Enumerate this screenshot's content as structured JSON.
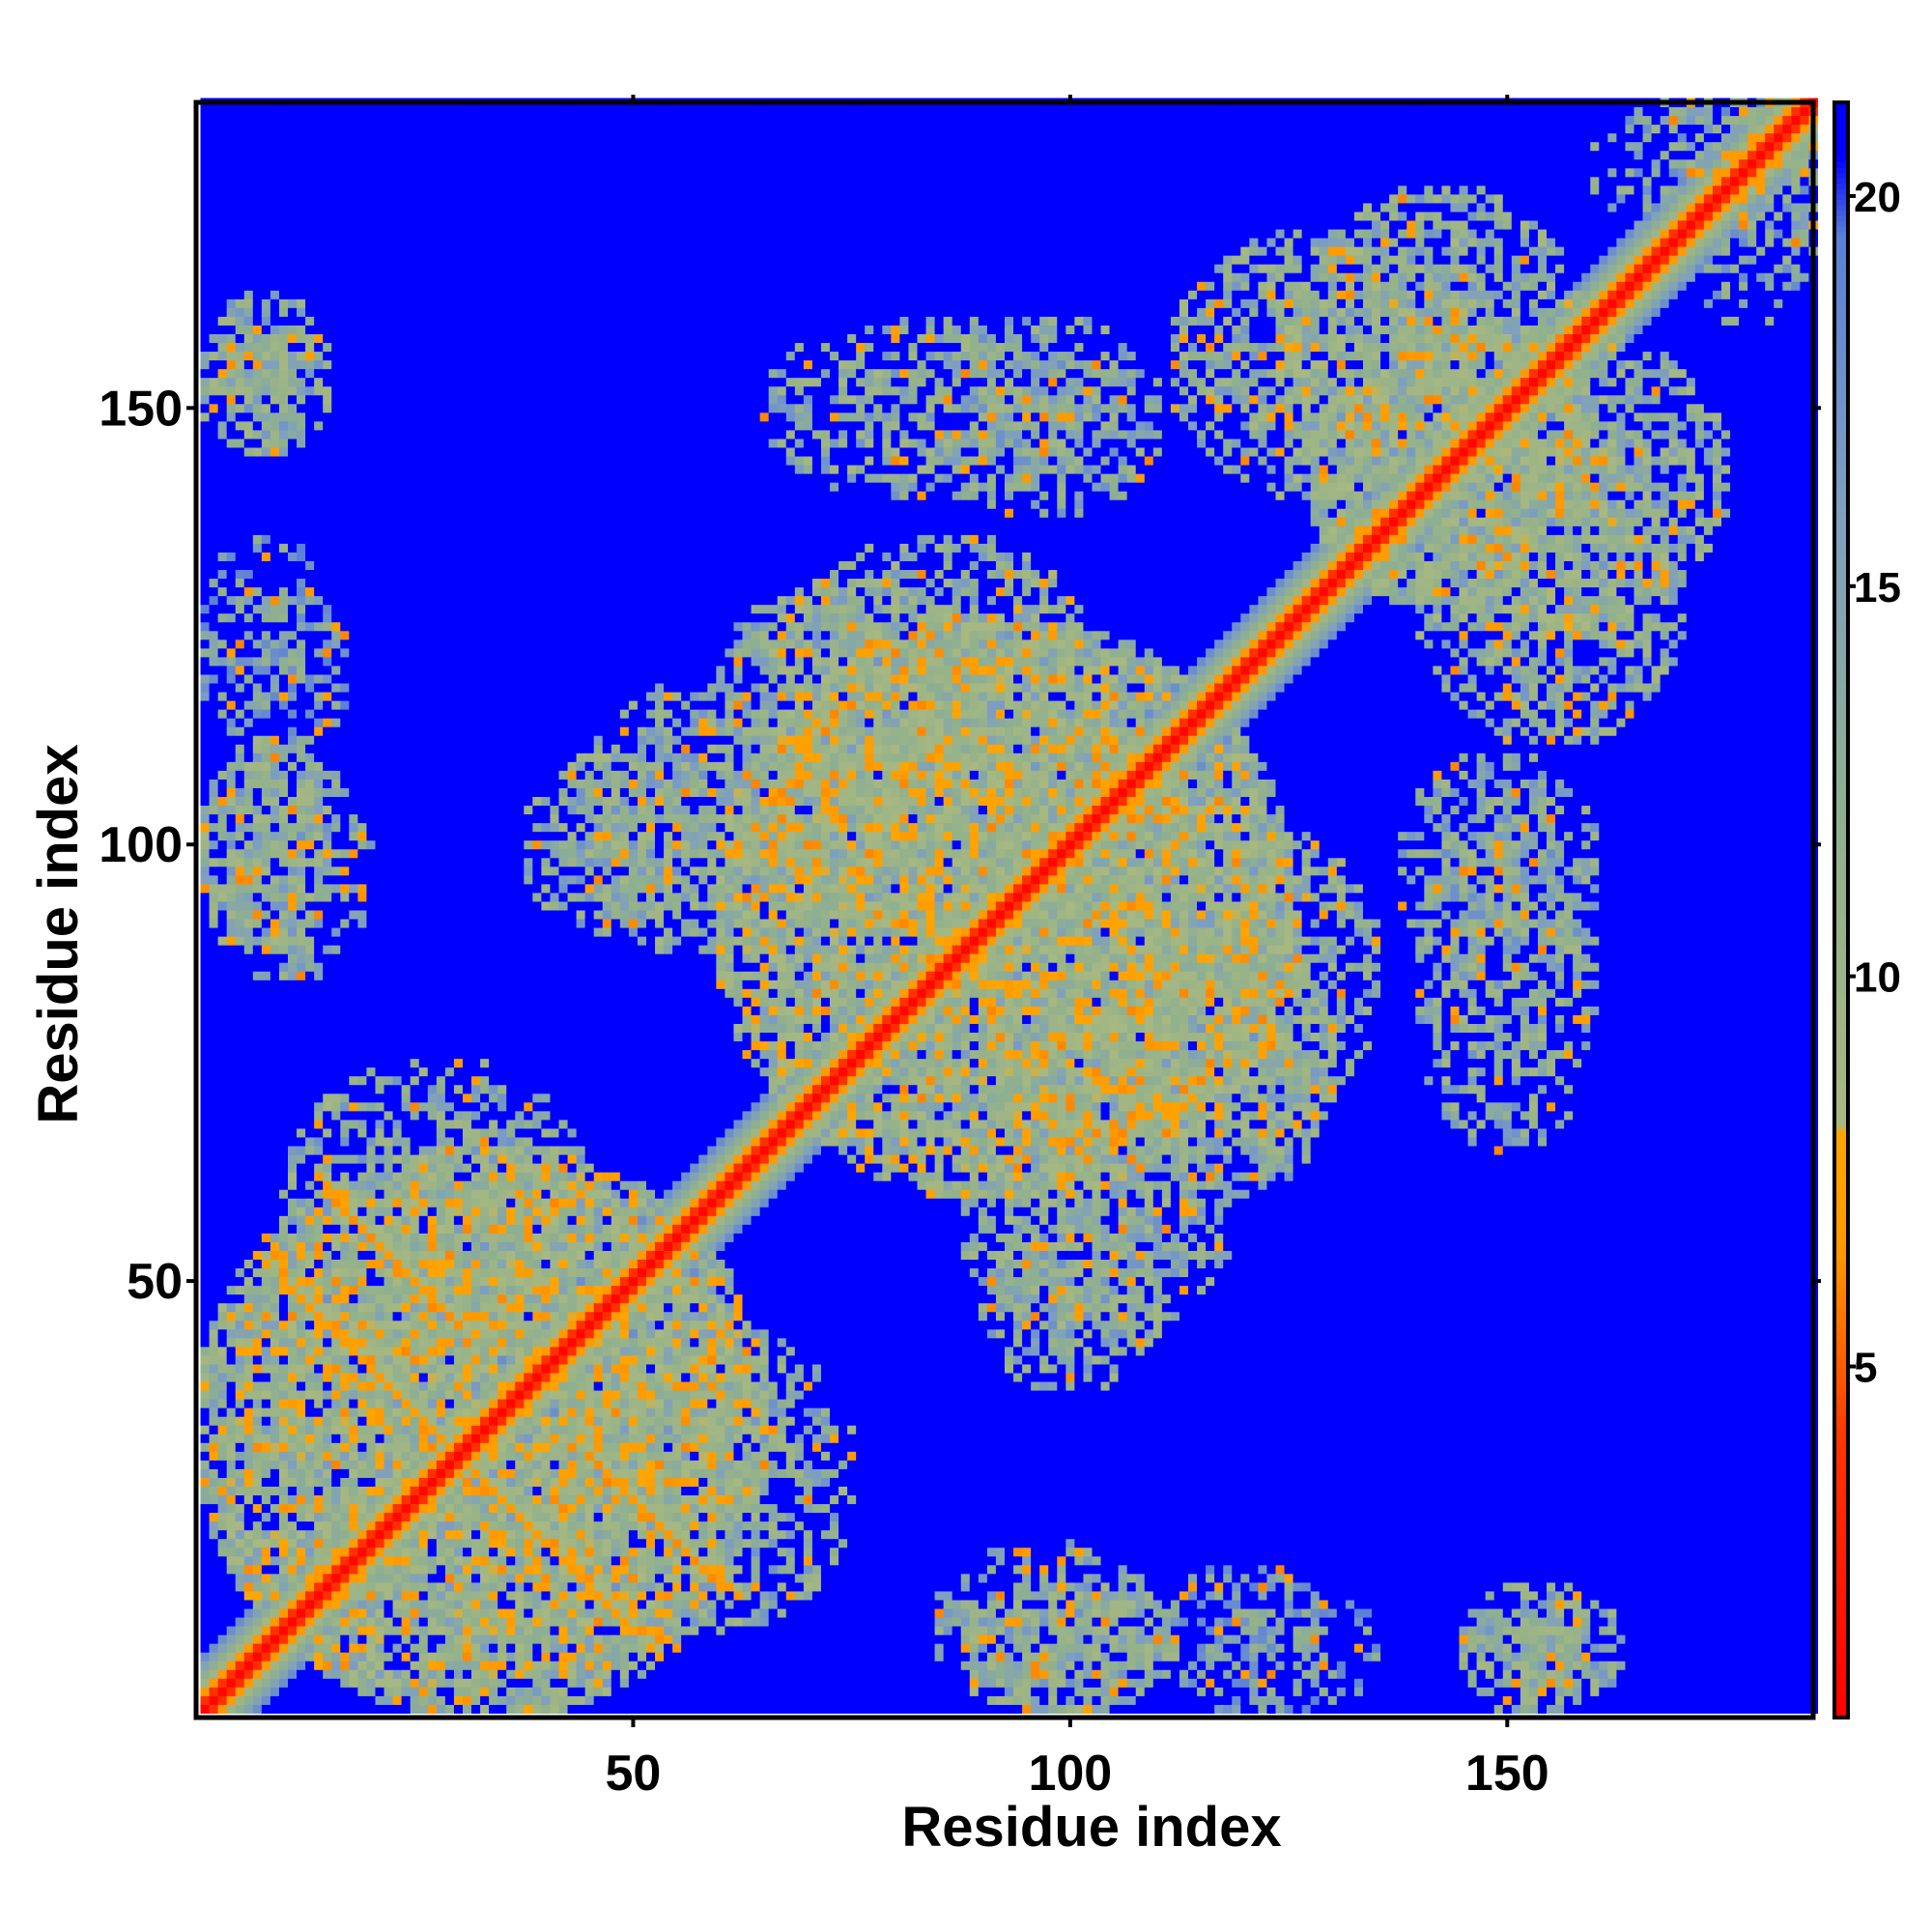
{
  "chart_data": {
    "type": "heatmap",
    "title": "",
    "xlabel": "Residue index",
    "ylabel": "Residue index",
    "n_residues": 185,
    "xlim": [
      1,
      185
    ],
    "ylim": [
      1,
      185
    ],
    "x_ticks": [
      50,
      100,
      150
    ],
    "y_ticks": [
      50,
      100,
      150
    ],
    "colorbar": {
      "ticks": [
        5,
        10,
        15,
        20
      ],
      "range": [
        0.5,
        21.2
      ],
      "colormap": [
        {
          "value": 0.5,
          "color": "#ff0000"
        },
        {
          "value": 4.0,
          "color": "#ff3300"
        },
        {
          "value": 6.5,
          "color": "#ff9900"
        },
        {
          "value": 8.0,
          "color": "#ffa500"
        },
        {
          "value": 8.1,
          "color": "#a8b880"
        },
        {
          "value": 12.0,
          "color": "#8fb08f"
        },
        {
          "value": 16.0,
          "color": "#7f9fc0"
        },
        {
          "value": 19.5,
          "color": "#5a7fd8"
        },
        {
          "value": 20.5,
          "color": "#0000ff"
        },
        {
          "value": 21.2,
          "color": "#0000ff"
        }
      ]
    },
    "background_value": 21,
    "diagonal_band": {
      "value_at_diagonal": 1.0,
      "value_slope_per_residue": 2.8
    },
    "contact_regions": [
      {
        "i_range": [
          1,
          65
        ],
        "j_range": [
          1,
          65
        ],
        "density": 0.82,
        "mean_value": 12
      },
      {
        "i_range": [
          40,
          75
        ],
        "j_range": [
          10,
          45
        ],
        "density": 0.6,
        "mean_value": 13
      },
      {
        "i_range": [
          60,
          125
        ],
        "j_range": [
          60,
          125
        ],
        "density": 0.78,
        "mean_value": 12
      },
      {
        "i_range": [
          65,
          105
        ],
        "j_range": [
          90,
          135
        ],
        "density": 0.7,
        "mean_value": 12.5
      },
      {
        "i_range": [
          88,
          118
        ],
        "j_range": [
          44,
          70
        ],
        "density": 0.72,
        "mean_value": 13
      },
      {
        "i_range": [
          105,
          130
        ],
        "j_range": [
          60,
          90
        ],
        "density": 0.68,
        "mean_value": 13
      },
      {
        "i_range": [
          125,
          160
        ],
        "j_range": [
          128,
          175
        ],
        "density": 0.7,
        "mean_value": 12.5
      },
      {
        "i_range": [
          140,
          170
        ],
        "j_range": [
          112,
          146
        ],
        "density": 0.7,
        "mean_value": 12.5
      },
      {
        "i_range": [
          140,
          160
        ],
        "j_range": [
          65,
          100
        ],
        "density": 0.55,
        "mean_value": 13
      },
      {
        "i_range": [
          85,
          110
        ],
        "j_range": [
          138,
          160
        ],
        "density": 0.6,
        "mean_value": 13.5
      },
      {
        "i_range": [
          1,
          15
        ],
        "j_range": [
          88,
          112
        ],
        "density": 0.7,
        "mean_value": 13
      },
      {
        "i_range": [
          1,
          12
        ],
        "j_range": [
          145,
          160
        ],
        "density": 0.7,
        "mean_value": 13
      },
      {
        "i_range": [
          1,
          15
        ],
        "j_range": [
          115,
          135
        ],
        "density": 0.4,
        "mean_value": 15
      },
      {
        "i_range": [
          85,
          110
        ],
        "j_range": [
          1,
          20
        ],
        "density": 0.6,
        "mean_value": 13
      },
      {
        "i_range": [
          110,
          130
        ],
        "j_range": [
          1,
          17
        ],
        "density": 0.45,
        "mean_value": 15
      },
      {
        "i_range": [
          145,
          163
        ],
        "j_range": [
          1,
          15
        ],
        "density": 0.6,
        "mean_value": 13
      },
      {
        "i_range": [
          38,
          55
        ],
        "j_range": [
          90,
          110
        ],
        "density": 0.6,
        "mean_value": 13
      },
      {
        "i_range": [
          170,
          185
        ],
        "j_range": [
          160,
          185
        ],
        "density": 0.5,
        "mean_value": 14
      }
    ],
    "antiparallel_contact_lines": [
      {
        "from": [
          10,
          50
        ],
        "to": [
          50,
          10
        ],
        "value": 7
      },
      {
        "from": [
          15,
          60
        ],
        "to": [
          30,
          45
        ],
        "value": 6.5
      },
      {
        "from": [
          55,
          20
        ],
        "to": [
          62,
          14
        ],
        "value": 7
      }
    ]
  }
}
